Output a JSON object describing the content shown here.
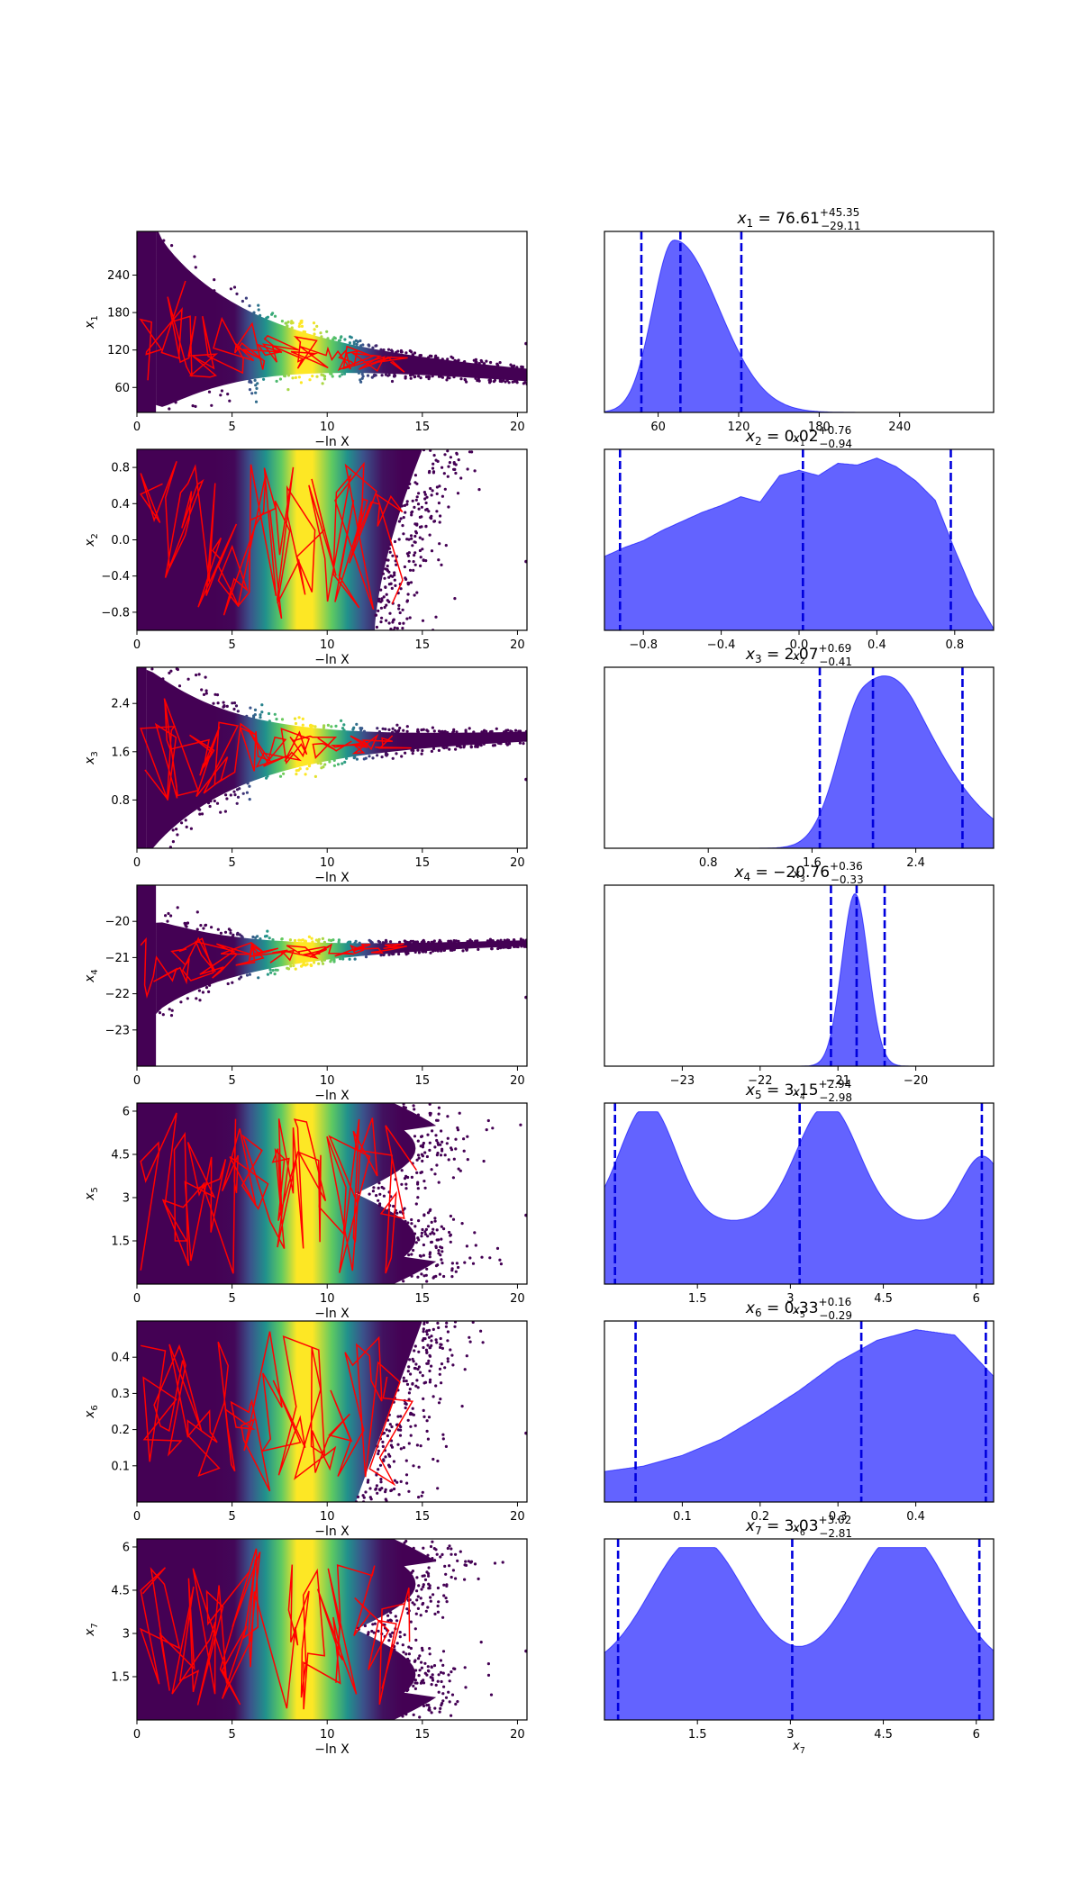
{
  "chart_data": [
    {
      "type": "trace",
      "ylabel": "x_1",
      "xlabel": "−ln X",
      "xlim": [
        0,
        20.5
      ],
      "ylim": [
        20,
        310
      ],
      "xticks": [
        "0",
        "5",
        "10",
        "15",
        "20"
      ],
      "yticks": [
        60,
        120,
        180,
        240
      ],
      "band": {
        "x": [
          1.0,
          20.5
        ],
        "center": [
          175,
          80
        ],
        "halfwidth_start": 135,
        "halfwidth_end": 8
      },
      "trace_lines": true
    },
    {
      "type": "area",
      "title": "x_1 = 76.61 +45.35 −29.11",
      "xlabel": "x_1",
      "xlim": [
        20,
        310
      ],
      "xticks": [
        60,
        120,
        180,
        240
      ],
      "quantiles": [
        47.5,
        76.6,
        122.0
      ],
      "modes": [
        [
          72,
          16,
          1.0
        ]
      ],
      "skew": 0.9
    },
    {
      "type": "trace",
      "ylabel": "x_2",
      "xlabel": "−ln X",
      "xlim": [
        0,
        20.5
      ],
      "ylim": [
        -1,
        1
      ],
      "xticks": [
        "0",
        "5",
        "10",
        "15",
        "20"
      ],
      "yticks": [
        "−0.8",
        "−0.4",
        "0.0",
        "0.4",
        "0.8"
      ],
      "trace_lines": true
    },
    {
      "type": "area",
      "title": "x_2 = 0.02 +0.76 −0.94",
      "xlabel": "x_2",
      "xlim": [
        -1,
        1
      ],
      "xticks": [
        "−0.8",
        "−0.4",
        "0.0",
        "0.4",
        "0.8"
      ],
      "quantiles": [
        -0.92,
        0.02,
        0.78
      ],
      "density": {
        "x": [
          -1,
          -0.9,
          -0.8,
          -0.7,
          -0.6,
          -0.5,
          -0.4,
          -0.3,
          -0.2,
          -0.1,
          0.0,
          0.1,
          0.2,
          0.3,
          0.4,
          0.5,
          0.6,
          0.7,
          0.8,
          0.9,
          1.0
        ],
        "y": [
          0.42,
          0.47,
          0.51,
          0.57,
          0.62,
          0.67,
          0.71,
          0.76,
          0.73,
          0.88,
          0.91,
          0.88,
          0.95,
          0.94,
          0.98,
          0.93,
          0.85,
          0.74,
          0.46,
          0.2,
          0.01
        ]
      }
    },
    {
      "type": "trace",
      "ylabel": "x_3",
      "xlabel": "−ln X",
      "xlim": [
        0,
        20.5
      ],
      "ylim": [
        0,
        3
      ],
      "xticks": [
        "0",
        "5",
        "10",
        "15",
        "20"
      ],
      "yticks": [
        0.8,
        1.6,
        2.4
      ],
      "band": {
        "x": [
          0.5,
          20.5
        ],
        "center": [
          1.4,
          1.85
        ],
        "halfwidth_start": 1.5,
        "halfwidth_end": 0.06
      },
      "trace_lines": true
    },
    {
      "type": "area",
      "title": "x_3 = 2.07 +0.69 −0.41",
      "xlabel": "x_3",
      "xlim": [
        0,
        3
      ],
      "xticks": [
        0.8,
        1.6,
        2.4
      ],
      "quantiles": [
        1.66,
        2.07,
        2.76
      ],
      "modes": [
        [
          2.0,
          0.2,
          1.0
        ],
        [
          2.4,
          0.25,
          0.5
        ]
      ],
      "skew": 0.6
    },
    {
      "type": "trace",
      "ylabel": "x_4",
      "xlabel": "−ln X",
      "xlim": [
        0,
        20.5
      ],
      "ylim": [
        -24,
        -19
      ],
      "xticks": [
        "0",
        "5",
        "10",
        "15",
        "20"
      ],
      "yticks": [
        "−23",
        "−22",
        "−21",
        "−20"
      ],
      "band": {
        "x": [
          1.0,
          20.5
        ],
        "center": [
          -21.3,
          -20.6
        ],
        "halfwidth_start": 1.2,
        "halfwidth_end": 0.06
      },
      "trace_lines": true
    },
    {
      "type": "area",
      "title": "x_4 = −20.76 +0.36 −0.33",
      "xlabel": "x_4",
      "xlim": [
        -24,
        -19
      ],
      "xticks": [
        "−23",
        "−22",
        "−21",
        "−20"
      ],
      "quantiles": [
        -21.09,
        -20.76,
        -20.4
      ],
      "modes": [
        [
          -20.78,
          0.17,
          1.0
        ]
      ]
    },
    {
      "type": "trace",
      "ylabel": "x_5",
      "xlabel": "−ln X",
      "xlim": [
        0,
        20.5
      ],
      "ylim": [
        0,
        6.28
      ],
      "xticks": [
        "0",
        "5",
        "10",
        "15",
        "20"
      ],
      "yticks": [
        1.5,
        3.0,
        4.5,
        6.0
      ],
      "trace_lines": true
    },
    {
      "type": "area",
      "title": "x_5 = 3.15 +2.94 −2.98",
      "xlabel": "x_5",
      "xlim": [
        0,
        6.28
      ],
      "xticks": [
        1.5,
        3.0,
        4.5,
        6.0
      ],
      "quantiles": [
        0.17,
        3.15,
        6.09
      ],
      "modes": [
        [
          0.7,
          0.45,
          0.8
        ],
        [
          3.6,
          0.5,
          0.8
        ],
        [
          6.1,
          0.35,
          0.45
        ]
      ],
      "floor": 0.5
    },
    {
      "type": "trace",
      "ylabel": "x_6",
      "xlabel": "−ln X",
      "xlim": [
        0,
        20.5
      ],
      "ylim": [
        0,
        0.5
      ],
      "xticks": [
        "0",
        "5",
        "10",
        "15",
        "20"
      ],
      "yticks": [
        0.1,
        0.2,
        0.3,
        0.4
      ],
      "trace_lines": true
    },
    {
      "type": "area",
      "title": "x_6 = 0.33 +0.16 −0.29",
      "xlabel": "x_6",
      "xlim": [
        0,
        0.5
      ],
      "xticks": [
        0.1,
        0.2,
        0.3,
        0.4
      ],
      "quantiles": [
        0.04,
        0.33,
        0.49
      ],
      "density": {
        "x": [
          0,
          0.05,
          0.1,
          0.15,
          0.2,
          0.25,
          0.3,
          0.35,
          0.4,
          0.45,
          0.5
        ],
        "y": [
          0.17,
          0.2,
          0.26,
          0.35,
          0.48,
          0.62,
          0.78,
          0.9,
          0.96,
          0.93,
          0.7
        ]
      }
    },
    {
      "type": "trace",
      "ylabel": "x_7",
      "xlabel": "−ln X",
      "xlim": [
        0,
        20.5
      ],
      "ylim": [
        0,
        6.28
      ],
      "xticks": [
        "0",
        "5",
        "10",
        "15",
        "20"
      ],
      "yticks": [
        1.5,
        3.0,
        4.5,
        6.0
      ],
      "trace_lines": true
    },
    {
      "type": "area",
      "title": "x_7 = 3.03 +3.02 −2.81",
      "xlabel": "x_7",
      "xlim": [
        0,
        6.28
      ],
      "xticks": [
        1.5,
        3.0,
        4.5,
        6.0
      ],
      "quantiles": [
        0.22,
        3.03,
        6.05
      ],
      "modes": [
        [
          1.5,
          0.75,
          0.9
        ],
        [
          4.8,
          0.75,
          0.95
        ]
      ],
      "floor": 0.4
    }
  ],
  "colors": {
    "trace_line": "#ff0000",
    "posterior_fill": "#5b5bff",
    "posterior_edge": "#0000ff",
    "quantile_line": "#0000dd",
    "viridis": [
      "#440154",
      "#3b528b",
      "#21918c",
      "#5ec962",
      "#fde725"
    ]
  }
}
